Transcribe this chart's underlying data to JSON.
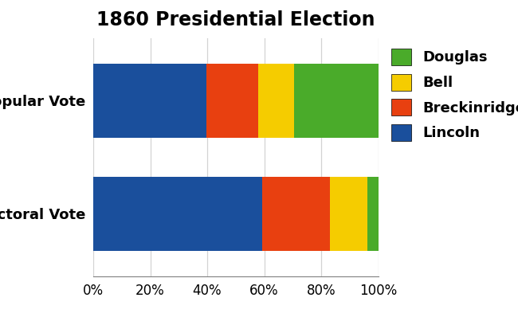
{
  "title": "1860 Presidential Election",
  "categories": [
    "Popular Vote",
    "Electoral Vote"
  ],
  "candidates": [
    "Lincoln",
    "Breckinridge",
    "Bell",
    "Douglas"
  ],
  "colors": {
    "Lincoln": "#1a4f9c",
    "Breckinridge": "#e84010",
    "Bell": "#f5cc00",
    "Douglas": "#4aab2a"
  },
  "values": {
    "Popular Vote": [
      39.8,
      18.1,
      12.6,
      29.5
    ],
    "Electoral Vote": [
      59.4,
      23.8,
      12.9,
      4.0
    ]
  },
  "xticks": [
    0,
    20,
    40,
    60,
    80,
    100
  ],
  "title_fontsize": 17,
  "label_fontsize": 13,
  "tick_fontsize": 12,
  "legend_fontsize": 13,
  "bar_height": 0.65,
  "background_color": "#ffffff",
  "legend_order": [
    "Douglas",
    "Bell",
    "Breckinridge",
    "Lincoln"
  ]
}
